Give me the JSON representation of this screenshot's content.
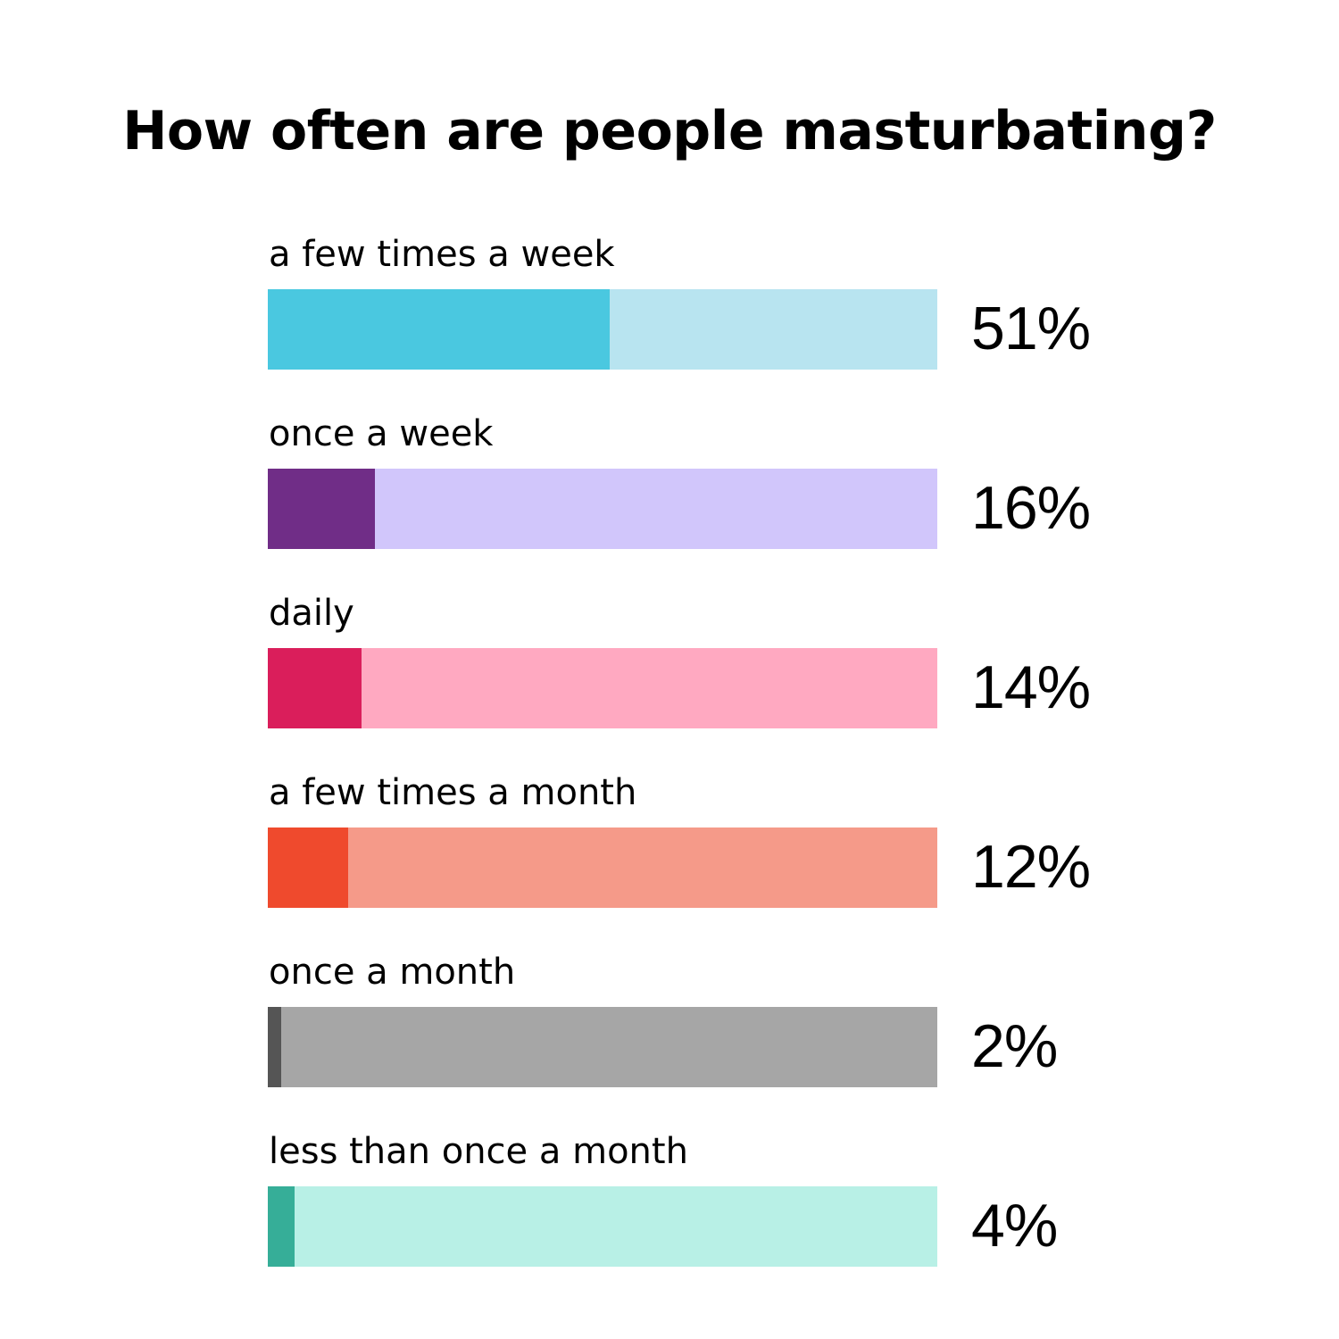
{
  "title": "How often are people masturbating?",
  "rows": [
    {
      "label": "a few times a week",
      "value": "51%",
      "pct": 51,
      "fill": "#4AC8E0",
      "track": "#B8E4F0"
    },
    {
      "label": "once a week",
      "value": "16%",
      "pct": 16,
      "fill": "#702D87",
      "track": "#D1C6FB"
    },
    {
      "label": "daily",
      "value": "14%",
      "pct": 14,
      "fill": "#DA1E5B",
      "track": "#FFA9C1"
    },
    {
      "label": "a few times a month",
      "value": "12%",
      "pct": 12,
      "fill": "#EF4A2D",
      "track": "#F59A89"
    },
    {
      "label": "once a month",
      "value": "2%",
      "pct": 2,
      "fill": "#555555",
      "track": "#A6A6A6"
    },
    {
      "label": "less than once a month",
      "value": "4%",
      "pct": 4,
      "fill": "#36AE98",
      "track": "#B8F0E6"
    }
  ],
  "chart_data": {
    "type": "bar",
    "orientation": "horizontal",
    "title": "How often are people masturbating?",
    "categories": [
      "a few times a week",
      "once a week",
      "daily",
      "a few times a month",
      "once a month",
      "less than once a month"
    ],
    "values": [
      51,
      16,
      14,
      12,
      2,
      4
    ],
    "value_labels": [
      "51%",
      "16%",
      "14%",
      "12%",
      "2%",
      "4%"
    ],
    "xlabel": "",
    "ylabel": "",
    "xlim": [
      0,
      100
    ],
    "grid": false,
    "legend": "none",
    "colors": [
      "#4AC8E0",
      "#702D87",
      "#DA1E5B",
      "#EF4A2D",
      "#555555",
      "#36AE98"
    ]
  }
}
